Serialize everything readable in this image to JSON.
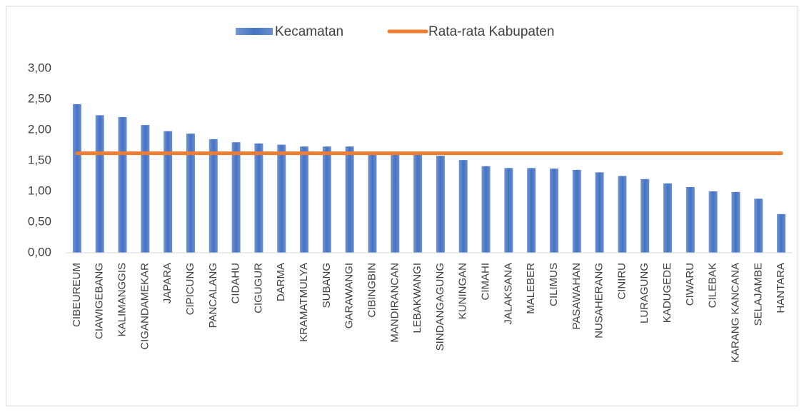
{
  "chart_data": {
    "type": "bar",
    "categories": [
      "CIBEUREUM",
      "CIAWIGEBANG",
      "KALIMANGGIS",
      "CIGANDAMEKAR",
      "JAPARA",
      "CIPICUNG",
      "PANCALANG",
      "CIDAHU",
      "CIGUGUR",
      "DARMA",
      "KRAMATMULYA",
      "SUBANG",
      "GARAWANGI",
      "CIBINGBIN",
      "MANDIRANCAN",
      "LEBAKWANGI",
      "SINDANGAGUNG",
      "KUNINGAN",
      "CIMAHI",
      "JALAKSANA",
      "MALEBER",
      "CILIMUS",
      "PASAWAHAN",
      "NUSAHERANG",
      "CINIRU",
      "LURAGUNG",
      "KADUGEDE",
      "CIWARU",
      "CILEBAK",
      "KARANG KANCANA",
      "SELAJAMBE",
      "HANTARA"
    ],
    "series": [
      {
        "name": "Kecamatan",
        "type": "bar",
        "color": "#4472c4",
        "values": [
          2.42,
          2.24,
          2.21,
          2.08,
          1.98,
          1.94,
          1.85,
          1.8,
          1.78,
          1.76,
          1.73,
          1.73,
          1.73,
          1.62,
          1.61,
          1.6,
          1.58,
          1.51,
          1.41,
          1.38,
          1.38,
          1.37,
          1.35,
          1.31,
          1.25,
          1.2,
          1.13,
          1.07,
          1.0,
          0.99,
          0.88,
          0.63
        ]
      },
      {
        "name": "Rata-rata Kabupaten",
        "type": "line",
        "color": "#ed7d31",
        "values": [
          1.62,
          1.62,
          1.62,
          1.62,
          1.62,
          1.62,
          1.62,
          1.62,
          1.62,
          1.62,
          1.62,
          1.62,
          1.62,
          1.62,
          1.62,
          1.62,
          1.62,
          1.62,
          1.62,
          1.62,
          1.62,
          1.62,
          1.62,
          1.62,
          1.62,
          1.62,
          1.62,
          1.62,
          1.62,
          1.62,
          1.62,
          1.62
        ]
      }
    ],
    "ylim": [
      0,
      3
    ],
    "yticks": [
      {
        "value": 0,
        "label": "0,00"
      },
      {
        "value": 0.5,
        "label": "0,50"
      },
      {
        "value": 1,
        "label": "1,00"
      },
      {
        "value": 1.5,
        "label": "1,50"
      },
      {
        "value": 2,
        "label": "2,00"
      },
      {
        "value": 2.5,
        "label": "2,50"
      },
      {
        "value": 3,
        "label": "3,00"
      }
    ],
    "grid": false,
    "legend": "top"
  }
}
